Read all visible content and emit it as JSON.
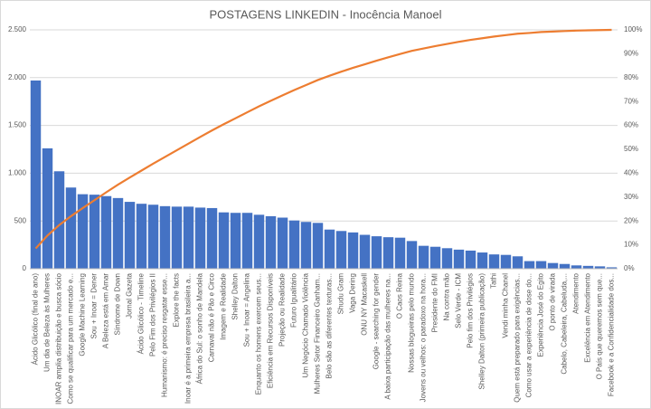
{
  "chart_data": {
    "type": "pareto",
    "title": "POSTAGENS LINKEDIN - Inocência Manoel",
    "categories": [
      "Ácido Glicólico (final de ano)",
      "Um dia de Beleza às Mulheres",
      "INOAR amplia distribuição e busca sócio",
      "Como se qualificar para um mercado e...",
      "Google Machine Learning",
      "Sou + Inoar = Dener",
      "A Beleza está em Amar",
      "Síndrome de Down",
      "Jornal Gazeta",
      "Ácido Glicólico - Timeline",
      "Pelo Fim dos Privilégios II",
      "Humanismo: é preciso resgatar esse...",
      "Explore the facts",
      "Inoar é a primeira empresa brasileira a...",
      "África do Sul: o sonho de Mandela",
      "Carnaval não é Pão e Circo",
      "Imagem e Realidade",
      "Shelley Dalton",
      "Sou + Inoar = Angelina",
      "Enquanto os homens exercem seus...",
      "Eficiência em Recursos Disponíveis",
      "Projeção ou Realidade",
      "Futuro Igualitário",
      "Um Negócio Chamado Violência",
      "Mulheres Setor Financeiro Ganham...",
      "Belo são as diferentes texturas...",
      "Shudu Gram",
      "Vaga Dering",
      "ONU NY Macaskell",
      "Google - searching for gender",
      "A baixa participação das mulheres na...",
      "O Caos Reina",
      "Nossas blogueiras pelo mundo",
      "Jovens ou velhos: o paradoxo na hora...",
      "Presidente do FMI",
      "Na contra mão",
      "Selo Verde - ICM",
      "Pelo fim dos Privilégios",
      "Shelley Dalton (primeira publicação)",
      "Tathi",
      "Vendi minha Chanel",
      "Quem está preparado para exigências...",
      "Como usar a experiência de dose do...",
      "Experiência José do Egito",
      "O ponto de virada",
      "Cabelo, Cabeleira, Cabeluda,...",
      "Atendimento",
      "Excelência em Atendimento",
      "O País que queremos sem que...",
      "Facebook e a Confidencialidade dos..."
    ],
    "series": [
      {
        "color": "#4472c4",
        "values": [
          1970,
          1260,
          1020,
          850,
          780,
          775,
          760,
          740,
          700,
          680,
          670,
          655,
          650,
          650,
          640,
          635,
          590,
          585,
          585,
          565,
          550,
          535,
          505,
          490,
          480,
          410,
          395,
          380,
          355,
          340,
          330,
          325,
          290,
          240,
          230,
          215,
          200,
          190,
          170,
          150,
          145,
          130,
          80,
          80,
          60,
          50,
          35,
          30,
          25,
          15
        ]
      },
      {
        "color": "#ed7d31",
        "axis": "y2",
        "values": [
          8.5,
          13.9,
          18.3,
          22.0,
          25.4,
          28.7,
          32.0,
          35.2,
          38.2,
          41.1,
          44.0,
          46.8,
          49.6,
          52.4,
          55.2,
          57.9,
          60.5,
          63.0,
          65.5,
          68.0,
          70.3,
          72.6,
          74.8,
          76.9,
          79.0,
          80.8,
          82.5,
          84.1,
          85.6,
          87.1,
          88.5,
          89.9,
          91.2,
          92.2,
          93.2,
          94.1,
          95.0,
          95.8,
          96.5,
          97.2,
          97.8,
          98.4,
          98.7,
          99.1,
          99.3,
          99.5,
          99.7,
          99.8,
          99.9,
          100
        ]
      }
    ],
    "ylim": [
      0,
      2500
    ],
    "yticks": [
      0,
      500,
      {
        "value": 1000,
        "label": "1.000"
      },
      {
        "value": 1500,
        "label": "1.500"
      },
      {
        "value": 2000,
        "label": "2.000"
      },
      {
        "value": 2500,
        "label": "2.500"
      }
    ],
    "y2lim": [
      0,
      100
    ],
    "y2ticks": [
      {
        "value": 0,
        "label": "0%"
      },
      {
        "value": 10,
        "label": "10%"
      },
      {
        "value": 20,
        "label": "20%"
      },
      {
        "value": 30,
        "label": "30%"
      },
      {
        "value": 40,
        "label": "40%"
      },
      {
        "value": 50,
        "label": "50%"
      },
      {
        "value": 60,
        "label": "60%"
      },
      {
        "value": 70,
        "label": "70%"
      },
      {
        "value": 80,
        "label": "80%"
      },
      {
        "value": 90,
        "label": "90%"
      },
      {
        "value": 100,
        "label": "100%"
      }
    ],
    "grid": true
  }
}
